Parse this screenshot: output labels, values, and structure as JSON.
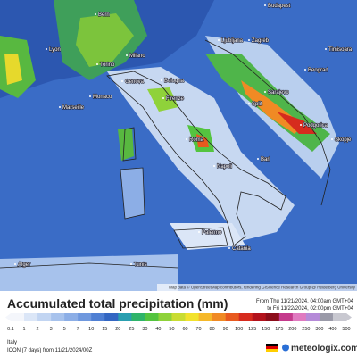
{
  "map": {
    "cities": [
      "Bern",
      "Budapest",
      "Lyon",
      "Ljubljana",
      "Zagreb",
      "Timisoara",
      "Torino",
      "Milano",
      "Beograd",
      "Monaco",
      "Genova",
      "Bologna",
      "Marseille",
      "Firenze",
      "Sarajevo",
      "Split",
      "Podgorica",
      "Skopje",
      "Roma",
      "Napoli",
      "Bari",
      "Palermo",
      "Catania",
      "Alger",
      "Tunis"
    ],
    "credits": "Map data © OpenStreetMap contributors, rendering GIScience Research Group @ Heidelberg University"
  },
  "legend": {
    "title": "Accumulated total precipitation (mm)",
    "from": "From Thu 11/21/2024, 04:00am GMT+04",
    "to": "to Fri 11/22/2024, 02:00pm GMT+04",
    "levels": [
      0.1,
      1,
      2,
      3,
      5,
      7,
      10,
      15,
      20,
      25,
      30,
      40,
      50,
      60,
      70,
      80,
      90,
      100,
      125,
      150,
      175,
      200,
      250,
      300,
      400,
      500
    ],
    "colors": [
      "#f4f6fb",
      "#dbe6f7",
      "#c2d5f2",
      "#a7c2ec",
      "#8caee6",
      "#6f98de",
      "#4f7fd3",
      "#3366c2",
      "#2a9fb0",
      "#2fb46a",
      "#54c43f",
      "#8fd23a",
      "#c9dc32",
      "#f2e22c",
      "#f5b82a",
      "#f08a24",
      "#e85a1f",
      "#d62b1e",
      "#b3121c",
      "#8c0d1a",
      "#c43a8c",
      "#e07ac0",
      "#b58ad8",
      "#9a9aa8",
      "#c8c8d0"
    ]
  },
  "footer": {
    "region": "Italy",
    "model": "ICON (7 days) from 11/21/2024/00Z",
    "brand": "meteologix.com"
  }
}
